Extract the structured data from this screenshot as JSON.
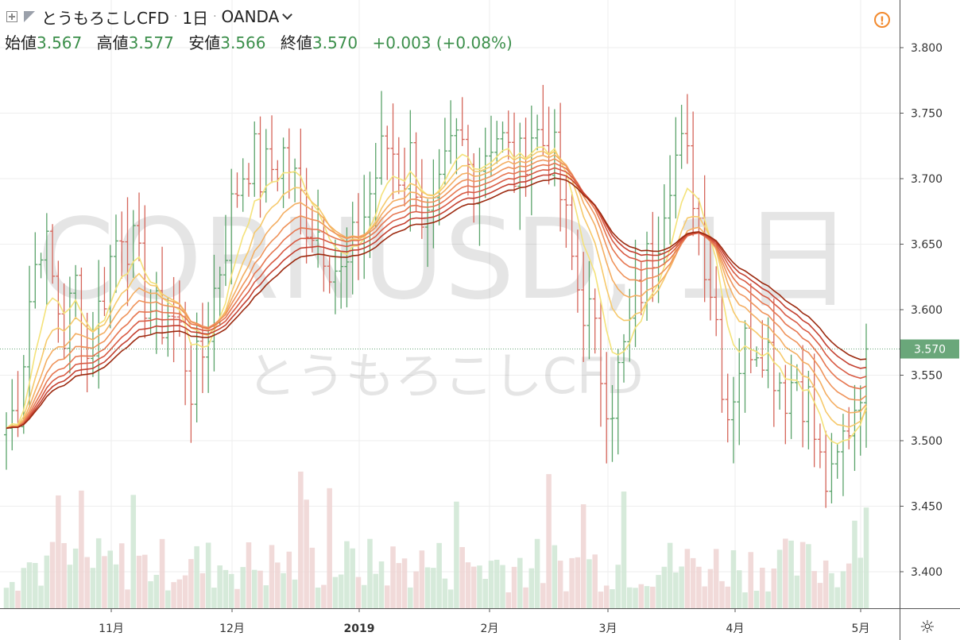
{
  "header": {
    "symbol": "とうもろこしCFD",
    "interval": "1日",
    "source": "OANDA",
    "open_label": "始値",
    "open": "3.567",
    "high_label": "高値",
    "high": "3.577",
    "low_label": "安値",
    "low": "3.566",
    "close_label": "終値",
    "close": "3.570",
    "change": "+0.003 (+0.08%)"
  },
  "watermark": {
    "main": "CORNUSD, 1日",
    "sub": "とうもろこしCFD"
  },
  "icons": {
    "add": "plus-box-icon",
    "flag": "flag-icon",
    "dropdown": "chevron-down-icon",
    "alert": "warning-icon",
    "settings": "gear-icon"
  },
  "colors": {
    "up": "#5aa36a",
    "down": "#d5655a",
    "last_price_bg": "#6aa77a",
    "ribbon_fast": "#f4e27a",
    "ribbon_slow": "#9c2a10"
  },
  "chart_data": {
    "type": "bar",
    "last_price": "3.570",
    "ylim": [
      3.37,
      3.825
    ],
    "y_ticks": [
      "3.800",
      "3.750",
      "3.700",
      "3.650",
      "3.600",
      "3.550",
      "3.500",
      "3.450",
      "3.400"
    ],
    "x_labels": [
      "11月",
      "12月",
      "2019",
      "2月",
      "3月",
      "4月",
      "5月"
    ],
    "ohlc_anchors": [
      3.51,
      3.53,
      3.61,
      3.66,
      3.62,
      3.58,
      3.62,
      3.56,
      3.6,
      3.64,
      3.67,
      3.64,
      3.61,
      3.59,
      3.6,
      3.58,
      3.54,
      3.57,
      3.62,
      3.66,
      3.7,
      3.72,
      3.7,
      3.71,
      3.72,
      3.69,
      3.67,
      3.66,
      3.64,
      3.62,
      3.65,
      3.68,
      3.71,
      3.73,
      3.7,
      3.72,
      3.66,
      3.67,
      3.71,
      3.73,
      3.7,
      3.72,
      3.74,
      3.72,
      3.7,
      3.74,
      3.73,
      3.72,
      3.67,
      3.62,
      3.6,
      3.56,
      3.53,
      3.56,
      3.6,
      3.63,
      3.66,
      3.71,
      3.72,
      3.7,
      3.65,
      3.6,
      3.52,
      3.56,
      3.58,
      3.58,
      3.56,
      3.54,
      3.55,
      3.53,
      3.48,
      3.46,
      3.5,
      3.53,
      3.57
    ],
    "ribbon_periods": 8,
    "volume_range": "relative"
  }
}
